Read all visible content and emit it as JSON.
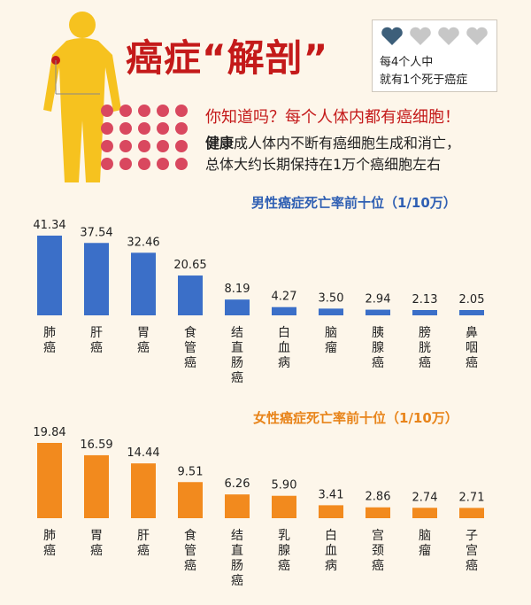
{
  "header": {
    "title": "癌症“解剖”",
    "stat_line1": "每4个人中",
    "stat_line2": "就有1个死于癌症",
    "question": "你知道吗？每个人体内都有癌细胞！",
    "fact_bold": "健康",
    "fact_rest": "成人体内不断有癌细胞生成和消亡，",
    "fact_line2": "总体大约长期保持在1万个癌细胞左右"
  },
  "colors": {
    "male_bar": "#3b6fc8",
    "female_bar": "#f28a1e",
    "male_title": "#2f5fb3",
    "female_title": "#e8841a",
    "title_red": "#c41a1a",
    "figure_yellow": "#f6c21f",
    "heart_dark": "#3d5f7a",
    "heart_light": "#c7c7c7"
  },
  "chart_data": [
    {
      "type": "bar",
      "title": "男性癌症死亡率前十位（1/10万）",
      "categories": [
        "肺癌",
        "肝癌",
        "胃癌",
        "食管癌",
        "结直肠癌",
        "白血病",
        "脑瘤",
        "胰腺癌",
        "膀胱癌",
        "鼻咽癌"
      ],
      "values": [
        41.34,
        37.54,
        32.46,
        20.65,
        8.19,
        4.27,
        3.5,
        2.94,
        2.13,
        2.05
      ],
      "value_labels": [
        "41.34",
        "37.54",
        "32.46",
        "20.65",
        "8.19",
        "4.27",
        "3.50",
        "2.94",
        "2.13",
        "2.05"
      ]
    },
    {
      "type": "bar",
      "title": "女性癌症死亡率前十位（1/10万）",
      "categories": [
        "肺癌",
        "胃癌",
        "肝癌",
        "食管癌",
        "结直肠癌",
        "乳腺癌",
        "白血病",
        "宫颈癌",
        "脑瘤",
        "子宫癌"
      ],
      "values": [
        19.84,
        16.59,
        14.44,
        9.51,
        6.26,
        5.9,
        3.41,
        2.86,
        2.74,
        2.71
      ],
      "value_labels": [
        "19.84",
        "16.59",
        "14.44",
        "9.51",
        "6.26",
        "5.90",
        "3.41",
        "2.86",
        "2.74",
        "2.71"
      ]
    }
  ]
}
